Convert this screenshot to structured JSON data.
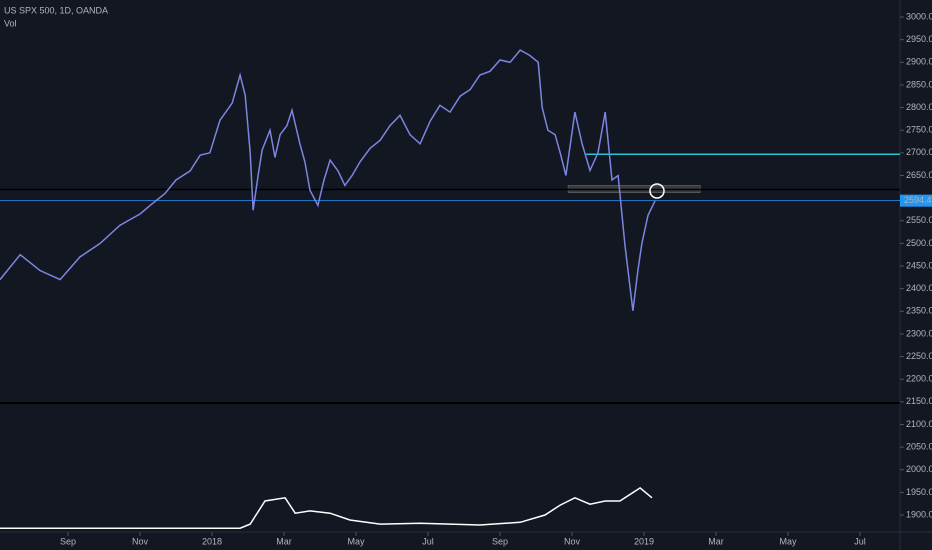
{
  "chart_data": {
    "type": "line",
    "title": "US SPX 500, 1D, OANDA",
    "subtitle": "Vol",
    "xlim": [
      -0.89,
      24.11
    ],
    "xticks": [
      {
        "value": 1,
        "label": "Sep"
      },
      {
        "value": 3,
        "label": "Nov"
      },
      {
        "value": 5,
        "label": "2018"
      },
      {
        "value": 7,
        "label": "Mar"
      },
      {
        "value": 9,
        "label": "May"
      },
      {
        "value": 11,
        "label": "Jul"
      },
      {
        "value": 13,
        "label": "Sep"
      },
      {
        "value": 15,
        "label": "Nov"
      },
      {
        "value": 17,
        "label": "2019"
      },
      {
        "value": 19,
        "label": "Mar"
      },
      {
        "value": 21,
        "label": "May"
      },
      {
        "value": 23,
        "label": "Jul"
      }
    ],
    "ylim": [
      1862.5,
      3037.6
    ],
    "yticks": [
      {
        "value": 3000,
        "label": "3000.0"
      },
      {
        "value": 2950,
        "label": "2950.0"
      },
      {
        "value": 2900,
        "label": "2900.0"
      },
      {
        "value": 2850,
        "label": "2850.0"
      },
      {
        "value": 2800,
        "label": "2800.0"
      },
      {
        "value": 2750,
        "label": "2750.0"
      },
      {
        "value": 2700,
        "label": "2700.0"
      },
      {
        "value": 2650,
        "label": "2650.0"
      },
      {
        "value": 2550,
        "label": "2550.0"
      },
      {
        "value": 2500,
        "label": "2500.0"
      },
      {
        "value": 2450,
        "label": "2450.0"
      },
      {
        "value": 2400,
        "label": "2400.0"
      },
      {
        "value": 2350,
        "label": "2350.0"
      },
      {
        "value": 2300,
        "label": "2300.0"
      },
      {
        "value": 2250,
        "label": "2250.0"
      },
      {
        "value": 2200,
        "label": "2200.0"
      },
      {
        "value": 2150,
        "label": "2150.0"
      },
      {
        "value": 2100,
        "label": "2100.0"
      },
      {
        "value": 2050,
        "label": "2050.0"
      },
      {
        "value": 2000,
        "label": "2000.0"
      },
      {
        "value": 1950,
        "label": "1950.0"
      },
      {
        "value": 1900,
        "label": "1900.0"
      }
    ],
    "last_price": 2594.4,
    "series": [
      {
        "color": "#7b86e0",
        "x": [
          -0.89,
          -0.33,
          0.22,
          0.78,
          1.33,
          1.89,
          2.44,
          3,
          3.28,
          3.69,
          4,
          4.39,
          4.67,
          4.94,
          5.22,
          5.56,
          5.78,
          5.92,
          6.06,
          6.14,
          6.28,
          6.39,
          6.61,
          6.75,
          6.89,
          7.08,
          7.22,
          7.44,
          7.58,
          7.72,
          7.94,
          8.11,
          8.28,
          8.5,
          8.69,
          8.89,
          9.11,
          9.39,
          9.67,
          9.94,
          10.22,
          10.5,
          10.78,
          11.06,
          11.33,
          11.61,
          11.89,
          12.17,
          12.44,
          12.72,
          13,
          13.28,
          13.56,
          13.83,
          14.06,
          14.17,
          14.33,
          14.53,
          14.67,
          14.83,
          15.08,
          15.28,
          15.5,
          15.72,
          15.92,
          16.11,
          16.28,
          16.47,
          16.69,
          16.83,
          16.94,
          17.11,
          17.31
        ],
        "values": [
          2420,
          2475,
          2440,
          2420,
          2470,
          2500,
          2540,
          2565,
          2584,
          2610,
          2640,
          2660,
          2695,
          2700,
          2772,
          2810,
          2872,
          2827,
          2700,
          2573,
          2650,
          2706,
          2750,
          2690,
          2740,
          2760,
          2794,
          2720,
          2680,
          2617,
          2584,
          2640,
          2684,
          2660,
          2628,
          2650,
          2680,
          2710,
          2728,
          2760,
          2783,
          2740,
          2720,
          2770,
          2805,
          2790,
          2825,
          2840,
          2872,
          2880,
          2905,
          2900,
          2927,
          2915,
          2900,
          2800,
          2750,
          2740,
          2700,
          2650,
          2790,
          2720,
          2661,
          2700,
          2790,
          2640,
          2650,
          2495,
          2351,
          2440,
          2500,
          2562,
          2594.4
        ]
      },
      {
        "color": "#ffffff",
        "x": [
          -0.89,
          5.78,
          6.06,
          6.47,
          7.03,
          7.31,
          7.72,
          8.28,
          8.83,
          9.67,
          10.78,
          12.44,
          13.56,
          14.25,
          14.67,
          15.08,
          15.5,
          15.92,
          16.33,
          16.89,
          17.22
        ],
        "values": [
          1871,
          1871,
          1880,
          1931,
          1938,
          1904,
          1909,
          1904,
          1889,
          1880,
          1882,
          1878,
          1884,
          1900,
          1922,
          1938,
          1924,
          1931,
          1931,
          1960,
          1938
        ]
      }
    ],
    "levels": [
      {
        "value": 2697,
        "color": "#26c6da",
        "x_start": 15.39
      },
      {
        "value": 2619,
        "color": "#000000",
        "x_start": -0.89
      }
    ],
    "zone": {
      "low": 2612,
      "high": 2628,
      "x": [
        14.89,
        18.56
      ]
    }
  }
}
